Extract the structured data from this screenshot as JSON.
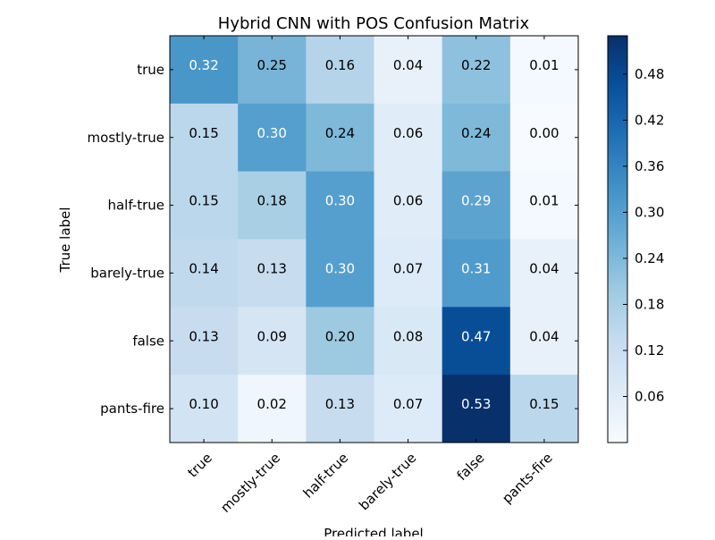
{
  "chart_data": {
    "type": "heatmap",
    "title": "Hybrid CNN with POS Confusion Matrix",
    "xlabel": "Predicted label",
    "ylabel": "True label",
    "row_labels": [
      "true",
      "mostly-true",
      "half-true",
      "barely-true",
      "false",
      "pants-fire"
    ],
    "col_labels": [
      "true",
      "mostly-true",
      "half-true",
      "barely-true",
      "false",
      "pants-fire"
    ],
    "values": [
      [
        0.32,
        0.25,
        0.16,
        0.04,
        0.22,
        0.01
      ],
      [
        0.15,
        0.3,
        0.24,
        0.06,
        0.24,
        0.0
      ],
      [
        0.15,
        0.18,
        0.3,
        0.06,
        0.29,
        0.01
      ],
      [
        0.14,
        0.13,
        0.3,
        0.07,
        0.31,
        0.04
      ],
      [
        0.13,
        0.09,
        0.2,
        0.08,
        0.47,
        0.04
      ],
      [
        0.1,
        0.02,
        0.13,
        0.07,
        0.53,
        0.15
      ]
    ],
    "colormap": "Blues",
    "color_range": [
      0.0,
      0.53
    ],
    "colorbar_ticks": [
      "0.06",
      "0.12",
      "0.18",
      "0.24",
      "0.30",
      "0.36",
      "0.42",
      "0.48"
    ]
  }
}
